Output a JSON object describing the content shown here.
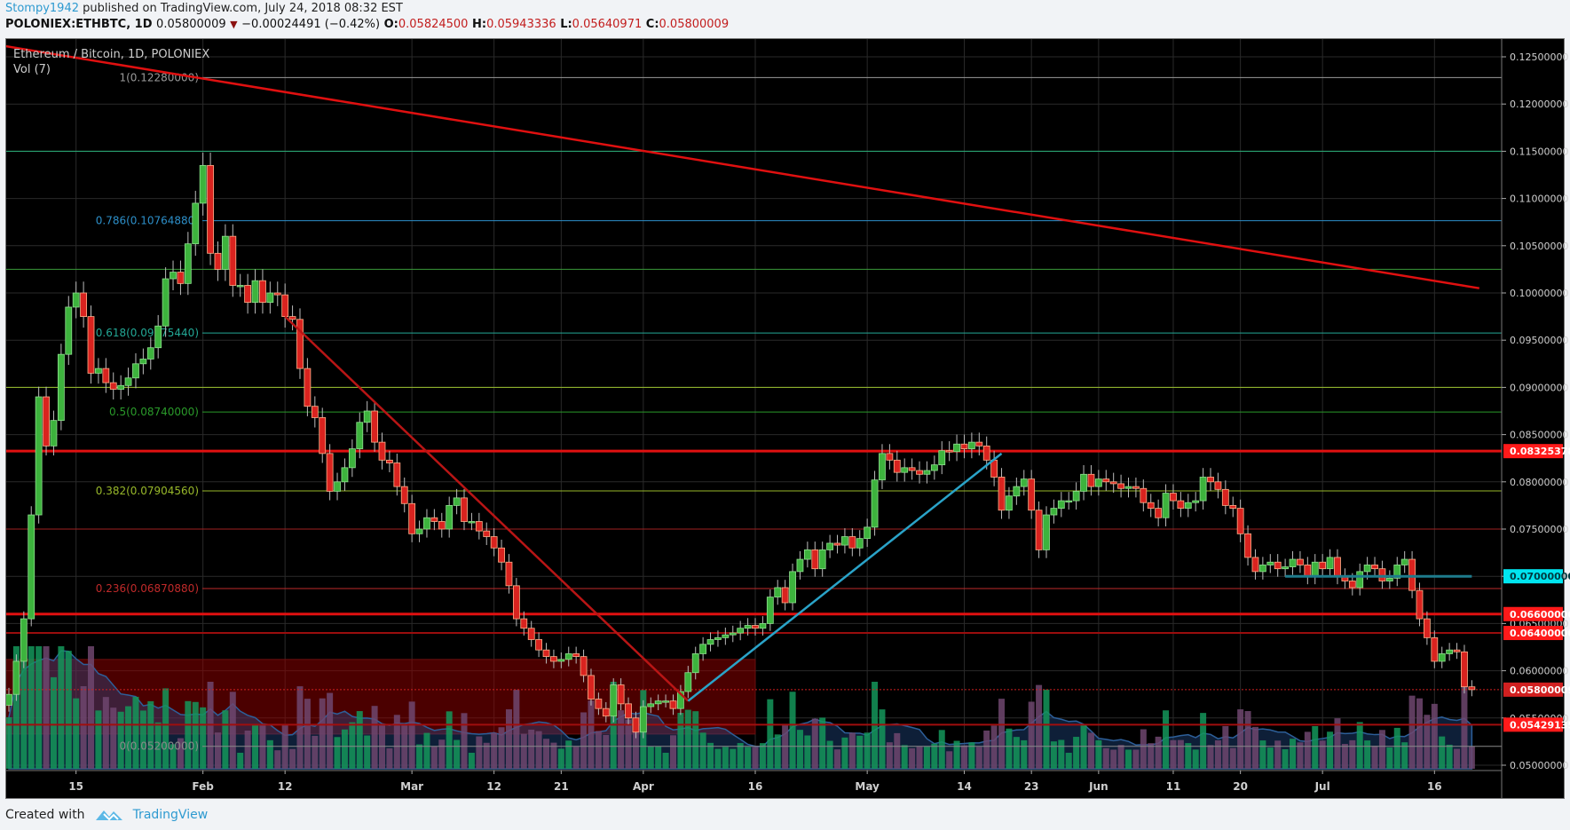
{
  "header": {
    "author": "Stompy1942",
    "published_text": "published on TradingView.com, July 24, 2018 08:32 EST",
    "symbol": "POLONIEX:ETHBTC, 1D",
    "last": "0.05800009",
    "change": "−0.00024491 (−0.42%)",
    "o_label": "O:",
    "o": "0.05824500",
    "h_label": "H:",
    "h": "0.05943336",
    "l_label": "L:",
    "l": "0.05640971",
    "c_label": "C:",
    "c": "0.05800009"
  },
  "legend": {
    "title": "Ethereum / Bitcoin, 1D, POLONIEX",
    "vol": "Vol (7)"
  },
  "footer": {
    "created_with": "Created with",
    "brand": "TradingView"
  },
  "colors": {
    "up": "#3db33d",
    "down": "#d9231f",
    "background": "#000000",
    "grid": "#2a2a2a",
    "trend_red": "#e01010",
    "trend_blue": "#2aa3c8"
  },
  "chart_data": {
    "type": "candlestick",
    "title": "Ethereum / Bitcoin, 1D, POLONIEX",
    "ylabel": "ETH/BTC",
    "ylim": [
      0.0485,
      0.1265
    ],
    "y_ticks": [
      "0.12500000",
      "0.12000000",
      "0.11500000",
      "0.11000000",
      "0.10500000",
      "0.10000000",
      "0.09500000",
      "0.09000000",
      "0.08500000",
      "0.08000000",
      "0.07500000",
      "0.07000000",
      "0.06500000",
      "0.06000000",
      "0.05500000",
      "0.05000000"
    ],
    "x_ticks": [
      {
        "label": "15",
        "day": 9
      },
      {
        "label": "Feb",
        "day": 26
      },
      {
        "label": "12",
        "day": 37
      },
      {
        "label": "Mar",
        "day": 54
      },
      {
        "label": "12",
        "day": 65
      },
      {
        "label": "21",
        "day": 74
      },
      {
        "label": "Apr",
        "day": 85
      },
      {
        "label": "16",
        "day": 100
      },
      {
        "label": "May",
        "day": 115
      },
      {
        "label": "14",
        "day": 128
      },
      {
        "label": "23",
        "day": 137
      },
      {
        "label": "Jun",
        "day": 146
      },
      {
        "label": "11",
        "day": 156
      },
      {
        "label": "20",
        "day": 165
      },
      {
        "label": "Jul",
        "day": 176
      },
      {
        "label": "16",
        "day": 191
      }
    ],
    "start_date": "2018-01-06",
    "closes": [
      0.0575,
      0.061,
      0.0655,
      0.0765,
      0.089,
      0.0838,
      0.0865,
      0.0935,
      0.0985,
      0.1,
      0.0975,
      0.0915,
      0.092,
      0.0905,
      0.0898,
      0.0902,
      0.091,
      0.0925,
      0.093,
      0.0942,
      0.0965,
      0.1015,
      0.1022,
      0.101,
      0.1052,
      0.1095,
      0.1135,
      0.1042,
      0.1025,
      0.106,
      0.1008,
      0.1008,
      0.099,
      0.1013,
      0.099,
      0.1,
      0.0998,
      0.0975,
      0.0972,
      0.092,
      0.088,
      0.0868,
      0.083,
      0.079,
      0.08,
      0.0815,
      0.0835,
      0.0863,
      0.0875,
      0.0842,
      0.0823,
      0.082,
      0.0795,
      0.0777,
      0.0745,
      0.075,
      0.0762,
      0.0758,
      0.075,
      0.0775,
      0.0783,
      0.0758,
      0.0758,
      0.0748,
      0.0742,
      0.073,
      0.0715,
      0.069,
      0.0655,
      0.0645,
      0.0633,
      0.0622,
      0.0615,
      0.061,
      0.0612,
      0.0618,
      0.0615,
      0.0595,
      0.057,
      0.056,
      0.0552,
      0.0585,
      0.0565,
      0.055,
      0.0535,
      0.0562,
      0.0565,
      0.0568,
      0.0568,
      0.056,
      0.0578,
      0.0598,
      0.0618,
      0.0628,
      0.0633,
      0.0635,
      0.0638,
      0.064,
      0.0645,
      0.0648,
      0.0645,
      0.065,
      0.0678,
      0.0688,
      0.0672,
      0.0705,
      0.0718,
      0.0728,
      0.0708,
      0.0728,
      0.0735,
      0.0733,
      0.0742,
      0.073,
      0.074,
      0.0752,
      0.0802,
      0.083,
      0.0823,
      0.081,
      0.0815,
      0.0812,
      0.0808,
      0.0812,
      0.0818,
      0.0833,
      0.0832,
      0.084,
      0.0835,
      0.0842,
      0.0838,
      0.0823,
      0.0805,
      0.077,
      0.0785,
      0.0795,
      0.0803,
      0.077,
      0.0728,
      0.0765,
      0.0772,
      0.078,
      0.078,
      0.079,
      0.0808,
      0.0795,
      0.0803,
      0.08,
      0.0798,
      0.0793,
      0.0795,
      0.0793,
      0.0778,
      0.0772,
      0.0762,
      0.0788,
      0.078,
      0.0772,
      0.0778,
      0.078,
      0.0805,
      0.08,
      0.0792,
      0.0775,
      0.0772,
      0.0745,
      0.072,
      0.0705,
      0.0712,
      0.0715,
      0.0708,
      0.071,
      0.0718,
      0.0712,
      0.07,
      0.0715,
      0.0708,
      0.072,
      0.07,
      0.0695,
      0.0688,
      0.0705,
      0.0712,
      0.0708,
      0.0695,
      0.0698,
      0.0712,
      0.0718,
      0.0685,
      0.0655,
      0.0635,
      0.061,
      0.0618,
      0.0622,
      0.062,
      0.0583,
      0.058
    ],
    "horizontal_levels": [
      {
        "price": 0.115,
        "color": "#2bb07a",
        "width": 1
      },
      {
        "price": 0.1025,
        "color": "#3a9a3a",
        "width": 1
      },
      {
        "price": 0.09,
        "color": "#9dc32e",
        "width": 1
      },
      {
        "price": 0.08325378,
        "color": "#e01010",
        "width": 3,
        "label": "0.08325378"
      },
      {
        "price": 0.075,
        "color": "#a02020",
        "width": 1
      },
      {
        "price": 0.066,
        "color": "#e01010",
        "width": 3,
        "label": "0.06600000"
      },
      {
        "price": 0.064,
        "color": "#9a0d0d",
        "width": 2,
        "label": "0.06400000"
      },
      {
        "price": 0.05429135,
        "color": "#a00e0e",
        "width": 2,
        "label": "0.05429135"
      }
    ],
    "fibonacci": [
      {
        "ratio": "1",
        "price": 0.1228,
        "label": "1(0.12280000)",
        "color": "#9a9a9a"
      },
      {
        "ratio": "0.786",
        "price": 0.1076488,
        "label": "0.786(0.10764880)",
        "color": "#2d8fc9"
      },
      {
        "ratio": "0.618",
        "price": 0.0957544,
        "label": "0.618(0.09575440)",
        "color": "#23a896"
      },
      {
        "ratio": "0.5",
        "price": 0.0874,
        "label": "0.5(0.08740000)",
        "color": "#2a9a2a"
      },
      {
        "ratio": "0.382",
        "price": 0.0790456,
        "label": "0.382(0.07904560)",
        "color": "#98b82a"
      },
      {
        "ratio": "0.236",
        "price": 0.0687088,
        "label": "0.236(0.06870880)",
        "color": "#c02a2a"
      },
      {
        "ratio": "0",
        "price": 0.052,
        "label": "0(0.05200000)",
        "color": "#8a8a8a"
      }
    ],
    "price_labels": [
      {
        "price": 0.08325378,
        "text": "0.08325378",
        "bg": "#ff1a1a",
        "fg": "#ffffff"
      },
      {
        "price": 0.07,
        "text": "0.07000000",
        "bg": "#00e5f0",
        "fg": "#003a40"
      },
      {
        "price": 0.066,
        "text": "0.06600000",
        "bg": "#ff1a1a",
        "fg": "#ffffff"
      },
      {
        "price": 0.064,
        "text": "0.06400000",
        "bg": "#ff1a1a",
        "fg": "#ffffff"
      },
      {
        "price": 0.05800009,
        "text": "0.05800009",
        "bg": "#d12020",
        "fg": "#ffffff"
      },
      {
        "price": 0.05429135,
        "text": "0.05429135",
        "bg": "#ff1a1a",
        "fg": "#ffffff"
      }
    ],
    "trendlines": [
      {
        "name": "long-downtrend",
        "from": {
          "day": -1,
          "price": 0.1262
        },
        "to": {
          "day": 197,
          "price": 0.1005
        },
        "color": "#e01010"
      },
      {
        "name": "feb-apr-downtrend",
        "from": {
          "day": 37,
          "price": 0.0975
        },
        "to": {
          "day": 91,
          "price": 0.0568
        },
        "color": "#b81515"
      },
      {
        "name": "apr-may-uptrend",
        "from": {
          "day": 91,
          "price": 0.0568
        },
        "to": {
          "day": 133,
          "price": 0.083
        },
        "color": "#2aa3c8"
      },
      {
        "name": "july-support",
        "from": {
          "day": 171,
          "price": 0.07
        },
        "to": {
          "day": 196,
          "price": 0.07
        },
        "color": "#1e7b8c"
      }
    ],
    "zones": [
      {
        "name": "demand-zone",
        "from_day": -1,
        "to_day": 100,
        "top": 0.0612,
        "bottom": 0.0533,
        "color": "rgba(150,0,0,0.5)"
      }
    ],
    "volume_ma_period": 7
  }
}
